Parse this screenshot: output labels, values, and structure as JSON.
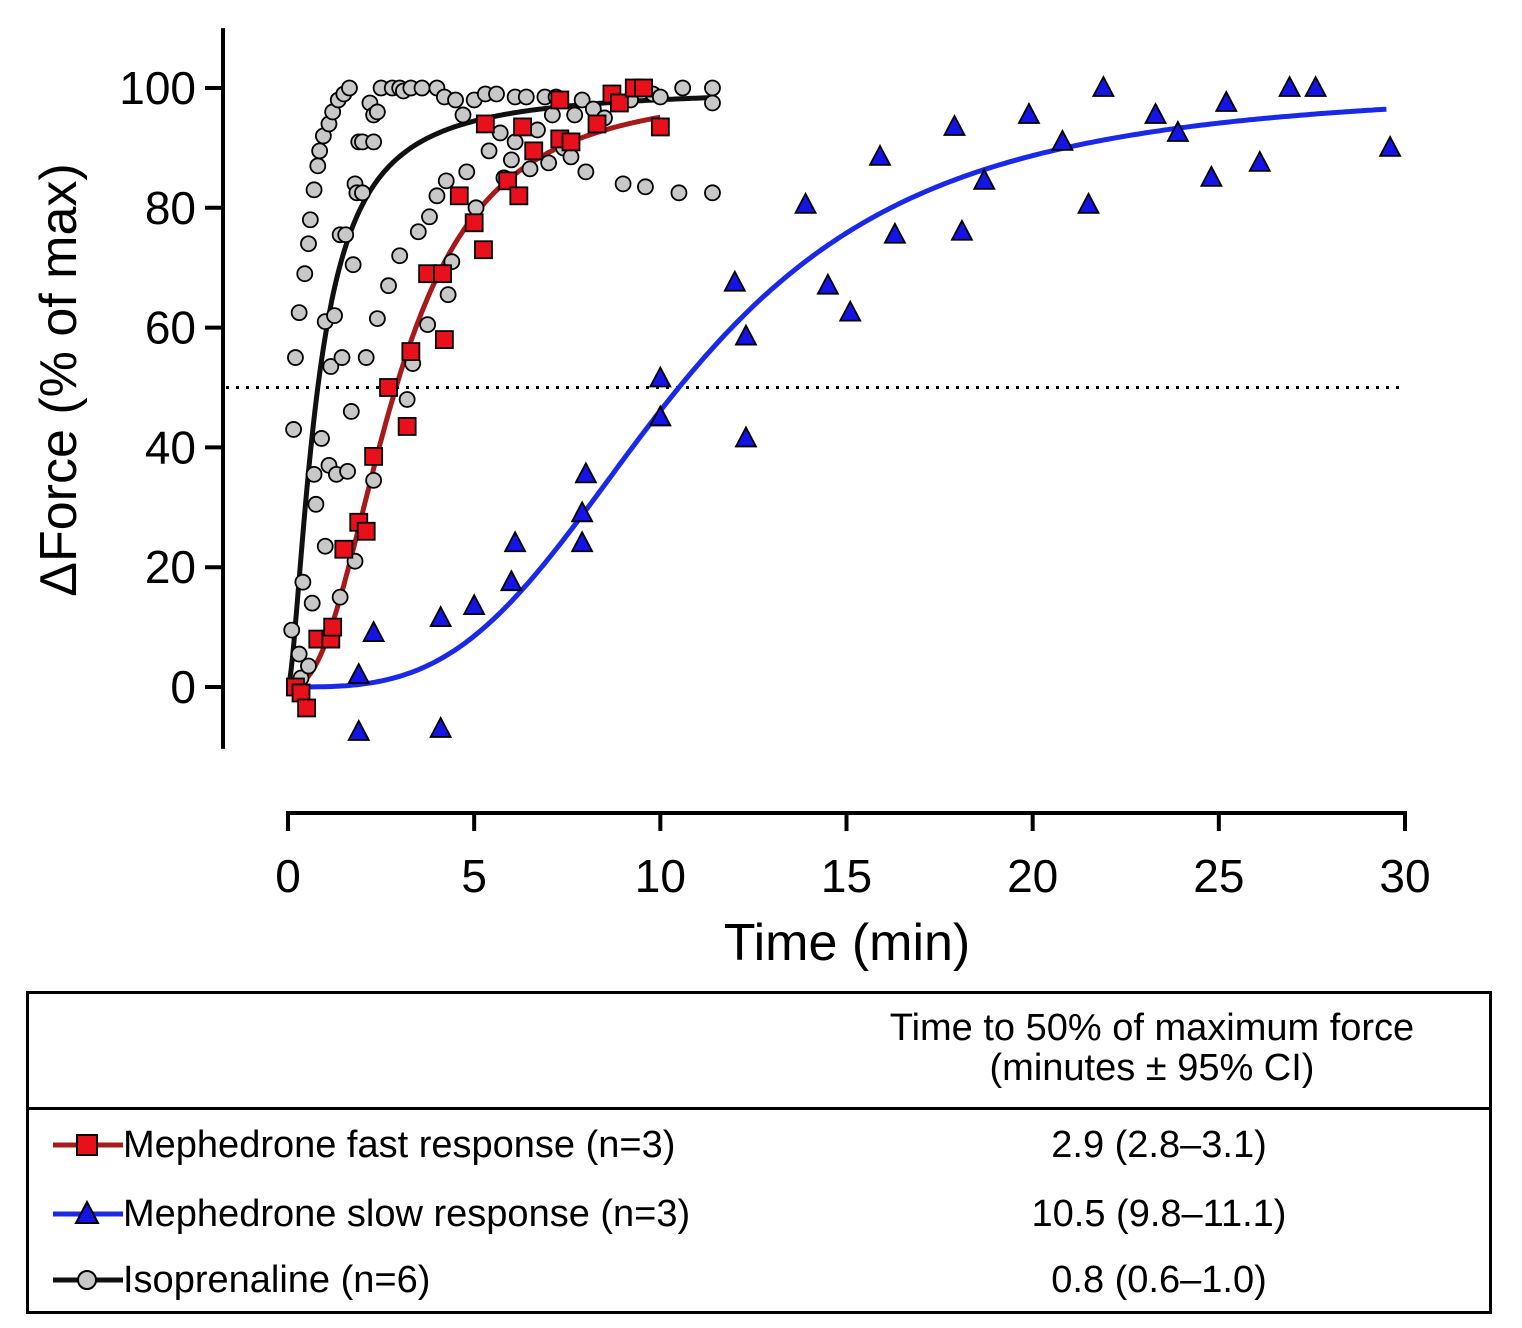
{
  "chart_data": {
    "type": "scatter",
    "title": "",
    "xlabel": "Time (min)",
    "ylabel": "ΔForce (% of max)",
    "xlim": [
      0,
      30
    ],
    "ylim": [
      -10,
      110
    ],
    "xticks": [
      0,
      5,
      10,
      15,
      20,
      25,
      30
    ],
    "yticks": [
      0,
      20,
      40,
      60,
      80,
      100
    ],
    "xtick_labels": [
      "0",
      "5",
      "10",
      "15",
      "20",
      "25",
      "30"
    ],
    "ytick_labels": [
      "0",
      "20",
      "40",
      "60",
      "80",
      "100"
    ],
    "reference_line": {
      "y": 50,
      "style": "dotted"
    },
    "grid": false,
    "series": [
      {
        "name": "Mephedrone fast response (n=3)",
        "marker": "square",
        "marker_color": "#e8101a",
        "line_color": "#a81a1a",
        "t50": 2.9,
        "fit": {
          "model": "logistic",
          "top": 100,
          "x50": 2.9,
          "hill": 2.4,
          "x_range": [
            0,
            10
          ]
        },
        "points": [
          [
            0.2,
            0
          ],
          [
            0.35,
            -1
          ],
          [
            0.5,
            -3.5
          ],
          [
            0.8,
            8
          ],
          [
            1.15,
            8
          ],
          [
            1.2,
            10
          ],
          [
            1.5,
            23
          ],
          [
            1.9,
            27.5
          ],
          [
            2.1,
            26
          ],
          [
            2.3,
            38.5
          ],
          [
            2.7,
            50
          ],
          [
            3.2,
            43.5
          ],
          [
            3.3,
            56
          ],
          [
            3.75,
            69
          ],
          [
            4.15,
            69
          ],
          [
            4.2,
            58
          ],
          [
            4.6,
            82
          ],
          [
            5.0,
            77.5
          ],
          [
            5.25,
            73
          ],
          [
            5.3,
            94
          ],
          [
            5.9,
            84.5
          ],
          [
            6.2,
            82
          ],
          [
            6.3,
            93.5
          ],
          [
            6.6,
            89.5
          ],
          [
            7.3,
            91.5
          ],
          [
            7.3,
            98
          ],
          [
            7.6,
            91
          ],
          [
            8.3,
            94
          ],
          [
            8.7,
            99
          ],
          [
            8.9,
            97.5
          ],
          [
            9.3,
            100
          ],
          [
            9.55,
            100
          ],
          [
            10.0,
            93.5
          ]
        ]
      },
      {
        "name": "Mephedrone slow response (n=3)",
        "marker": "triangle",
        "marker_color": "#1414e6",
        "line_color": "#1a28e8",
        "t50": 10.5,
        "fit": {
          "model": "logistic",
          "top": 100,
          "x50": 10.5,
          "hill": 3.2,
          "x_range": [
            0.5,
            29.5
          ]
        },
        "points": [
          [
            1.9,
            2
          ],
          [
            1.9,
            -7.5
          ],
          [
            2.3,
            9
          ],
          [
            4.1,
            -7
          ],
          [
            4.1,
            11.5
          ],
          [
            5.0,
            13.5
          ],
          [
            6.0,
            17.5
          ],
          [
            6.1,
            24
          ],
          [
            7.9,
            24
          ],
          [
            7.9,
            29
          ],
          [
            8.0,
            35.5
          ],
          [
            10.0,
            45
          ],
          [
            10.0,
            51.5
          ],
          [
            12.0,
            67.5
          ],
          [
            12.3,
            41.5
          ],
          [
            12.3,
            58.5
          ],
          [
            13.9,
            80.5
          ],
          [
            14.5,
            67
          ],
          [
            15.1,
            62.5
          ],
          [
            15.9,
            88.5
          ],
          [
            16.3,
            75.5
          ],
          [
            17.9,
            93.5
          ],
          [
            18.1,
            76
          ],
          [
            18.7,
            84.5
          ],
          [
            19.9,
            95.5
          ],
          [
            20.8,
            91
          ],
          [
            21.5,
            80.5
          ],
          [
            21.9,
            100
          ],
          [
            23.3,
            95.5
          ],
          [
            23.9,
            92.5
          ],
          [
            24.8,
            85
          ],
          [
            25.2,
            97.5
          ],
          [
            26.1,
            87.5
          ],
          [
            26.9,
            100
          ],
          [
            27.6,
            100
          ],
          [
            29.6,
            90
          ]
        ]
      },
      {
        "name": "Isoprenaline (n=6)",
        "marker": "circle",
        "marker_color": "#c8c8c8",
        "line_color": "#111111",
        "t50": 0.8,
        "fit": {
          "model": "logistic",
          "top": 100,
          "x50": 0.8,
          "hill": 1.55,
          "x_range": [
            0.05,
            11.3
          ]
        },
        "points": [
          [
            0.1,
            9.5
          ],
          [
            0.15,
            43
          ],
          [
            0.2,
            55
          ],
          [
            0.3,
            62.5
          ],
          [
            0.3,
            5.5
          ],
          [
            0.35,
            1.5
          ],
          [
            0.4,
            17.5
          ],
          [
            0.45,
            69
          ],
          [
            0.55,
            74
          ],
          [
            0.6,
            78
          ],
          [
            0.55,
            3.5
          ],
          [
            0.65,
            14
          ],
          [
            0.7,
            83
          ],
          [
            0.7,
            35.5
          ],
          [
            0.75,
            30.5
          ],
          [
            0.8,
            87
          ],
          [
            0.85,
            89.5
          ],
          [
            0.9,
            41.5
          ],
          [
            0.95,
            92
          ],
          [
            1.0,
            61
          ],
          [
            1.0,
            23.5
          ],
          [
            1.1,
            94
          ],
          [
            1.1,
            37
          ],
          [
            1.15,
            53.5
          ],
          [
            1.2,
            96
          ],
          [
            1.25,
            62
          ],
          [
            1.3,
            35.5
          ],
          [
            1.35,
            98
          ],
          [
            1.4,
            15
          ],
          [
            1.4,
            75.5
          ],
          [
            1.45,
            55
          ],
          [
            1.5,
            99
          ],
          [
            1.55,
            75.5
          ],
          [
            1.6,
            36
          ],
          [
            1.65,
            100
          ],
          [
            1.7,
            46
          ],
          [
            1.75,
            70.5
          ],
          [
            1.8,
            84
          ],
          [
            1.8,
            21
          ],
          [
            1.85,
            82.5
          ],
          [
            1.9,
            91
          ],
          [
            2.0,
            91
          ],
          [
            2.0,
            82.5
          ],
          [
            2.1,
            55
          ],
          [
            2.2,
            97.5
          ],
          [
            2.3,
            95.5
          ],
          [
            2.3,
            91
          ],
          [
            2.3,
            34.5
          ],
          [
            2.4,
            61.5
          ],
          [
            2.4,
            96
          ],
          [
            2.5,
            100
          ],
          [
            2.7,
            67
          ],
          [
            2.8,
            100
          ],
          [
            3.0,
            100
          ],
          [
            3.0,
            72
          ],
          [
            3.1,
            99.5
          ],
          [
            3.2,
            48
          ],
          [
            3.3,
            100
          ],
          [
            3.35,
            54
          ],
          [
            3.5,
            76
          ],
          [
            3.6,
            100
          ],
          [
            3.75,
            60.5
          ],
          [
            3.8,
            78.5
          ],
          [
            4.0,
            100
          ],
          [
            4.0,
            82
          ],
          [
            4.2,
            98.5
          ],
          [
            4.25,
            84.5
          ],
          [
            4.3,
            65.5
          ],
          [
            4.4,
            71
          ],
          [
            4.5,
            98
          ],
          [
            4.7,
            95.5
          ],
          [
            4.8,
            86
          ],
          [
            5.0,
            98
          ],
          [
            5.05,
            80
          ],
          [
            5.3,
            99
          ],
          [
            5.4,
            89.5
          ],
          [
            5.6,
            99
          ],
          [
            5.7,
            92.5
          ],
          [
            5.8,
            85
          ],
          [
            6.0,
            88
          ],
          [
            6.1,
            98.5
          ],
          [
            6.1,
            91
          ],
          [
            6.4,
            98.5
          ],
          [
            6.5,
            86.5
          ],
          [
            6.7,
            93
          ],
          [
            6.9,
            98.5
          ],
          [
            7.0,
            87.5
          ],
          [
            7.1,
            95.5
          ],
          [
            7.2,
            98.5
          ],
          [
            7.4,
            90
          ],
          [
            7.6,
            88.5
          ],
          [
            7.7,
            95.5
          ],
          [
            7.9,
            98
          ],
          [
            8.0,
            86
          ],
          [
            8.2,
            96.5
          ],
          [
            8.5,
            95
          ],
          [
            9.0,
            84
          ],
          [
            9.2,
            98
          ],
          [
            9.8,
            99
          ],
          [
            9.6,
            83.5
          ],
          [
            10.0,
            98.5
          ],
          [
            10.5,
            82.5
          ],
          [
            10.6,
            100
          ],
          [
            11.4,
            82.5
          ],
          [
            11.4,
            100
          ],
          [
            11.4,
            97.5
          ]
        ]
      }
    ]
  },
  "legend_table": {
    "header_line1": "Time to 50% of maximum force",
    "header_line2": "(minutes ± 95% CI)",
    "rows": [
      {
        "label": "Mephedrone fast response (n=3)",
        "value": "2.9 (2.8–3.1)"
      },
      {
        "label": "Mephedrone slow response (n=3)",
        "value": "10.5 (9.8–11.1)"
      },
      {
        "label": "Isoprenaline (n=6)",
        "value": "0.8 (0.6–1.0)"
      }
    ]
  }
}
